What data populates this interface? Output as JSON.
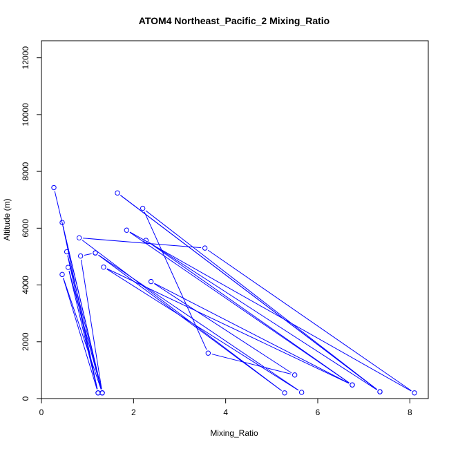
{
  "chart_data": {
    "type": "line",
    "title": "ATOM4 Northeast_Pacific_2 Mixing_Ratio",
    "xlabel": "Mixing_Ratio",
    "ylabel": "Altitude (m)",
    "xlim": [
      0,
      8.4
    ],
    "ylim": [
      0,
      12600
    ],
    "xticks": [
      0,
      2,
      4,
      6,
      8
    ],
    "yticks": [
      0,
      2000,
      4000,
      6000,
      8000,
      10000,
      12000
    ],
    "grid": false,
    "legend": "none",
    "markers": "open-circle",
    "line_color": "#0000ff",
    "series": [
      {
        "values": [
          {
            "x": 0.27,
            "y": 7430
          },
          {
            "x": 1.32,
            "y": 200
          },
          {
            "x": 0.45,
            "y": 6200
          },
          {
            "x": 1.23,
            "y": 200
          },
          {
            "x": 0.55,
            "y": 5170
          },
          {
            "x": 1.32,
            "y": 200
          },
          {
            "x": 0.58,
            "y": 4620
          },
          {
            "x": 1.23,
            "y": 200
          },
          {
            "x": 0.45,
            "y": 4370
          },
          {
            "x": 1.32,
            "y": 200
          },
          {
            "x": 0.85,
            "y": 5020
          },
          {
            "x": 1.17,
            "y": 5130
          },
          {
            "x": 5.28,
            "y": 200
          },
          {
            "x": 0.82,
            "y": 5660
          },
          {
            "x": 3.55,
            "y": 5300
          },
          {
            "x": 8.1,
            "y": 200
          },
          {
            "x": 1.85,
            "y": 5930
          },
          {
            "x": 6.75,
            "y": 480
          },
          {
            "x": 2.27,
            "y": 5570
          },
          {
            "x": 7.35,
            "y": 240
          },
          {
            "x": 1.65,
            "y": 7240
          },
          {
            "x": 7.35,
            "y": 240
          },
          {
            "x": 2.2,
            "y": 6700
          },
          {
            "x": 3.62,
            "y": 1600
          },
          {
            "x": 5.5,
            "y": 830
          },
          {
            "x": 2.38,
            "y": 4120
          },
          {
            "x": 6.75,
            "y": 480
          },
          {
            "x": 1.35,
            "y": 4630
          },
          {
            "x": 5.65,
            "y": 220
          },
          {
            "x": 1.17,
            "y": 5130
          }
        ]
      }
    ]
  }
}
